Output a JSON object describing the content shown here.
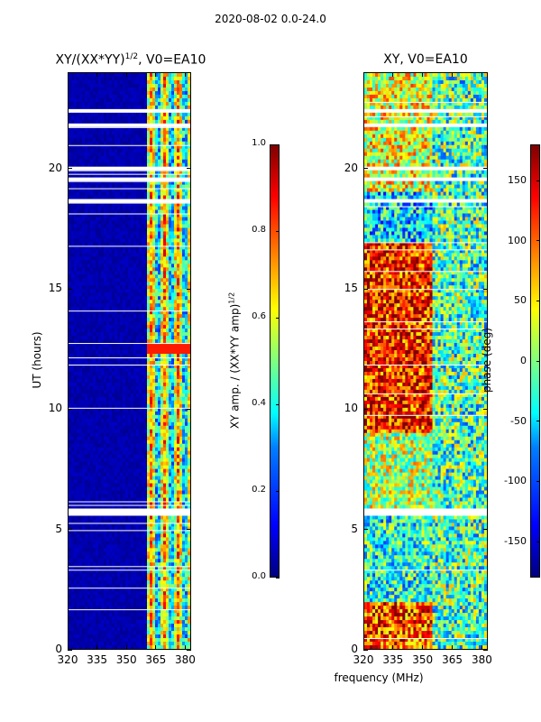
{
  "figure_title": "2020-08-02 0.0-24.0",
  "chart_data": [
    {
      "type": "heatmap",
      "title": "XY/(XX*YY)",
      "title_exponent": "1/2",
      "title_suffix": ", V0=EA10",
      "ylabel": "UT (hours)",
      "x_ticks": [
        "320",
        "335",
        "350",
        "365",
        "380"
      ],
      "x_tick_values": [
        320,
        335,
        350,
        365,
        380
      ],
      "xlim": [
        320,
        383
      ],
      "y_ticks": [
        "0",
        "5",
        "10",
        "15",
        "20"
      ],
      "y_tick_values": [
        0,
        5,
        10,
        15,
        20
      ],
      "ylim": [
        0,
        24
      ],
      "colorbar": {
        "label": "XY amp. / (XX*YY amp)",
        "label_exponent": "1/2",
        "ticks": [
          "0.0",
          "0.2",
          "0.4",
          "0.6",
          "0.8",
          "1.0"
        ],
        "tick_values": [
          0,
          0.2,
          0.4,
          0.6,
          0.8,
          1.0
        ],
        "range": [
          0,
          1
        ]
      }
    },
    {
      "type": "heatmap",
      "title": "XY, V0=EA10",
      "x_ticks": [
        "320",
        "335",
        "350",
        "365",
        "380"
      ],
      "x_tick_values": [
        320,
        335,
        350,
        365,
        380
      ],
      "xlim": [
        320,
        383
      ],
      "y_ticks": [
        "0",
        "5",
        "10",
        "15",
        "20"
      ],
      "y_tick_values": [
        0,
        5,
        10,
        15,
        20
      ],
      "ylim": [
        0,
        24
      ],
      "colorbar": {
        "label": "phase (deg)",
        "ticks": [
          "-150",
          "-100",
          "-50",
          "0",
          "50",
          "100",
          "150"
        ],
        "tick_values": [
          -150,
          -100,
          -50,
          0,
          50,
          100,
          150
        ],
        "range": [
          -180,
          180
        ]
      }
    }
  ],
  "xlabel_shared": "frequency (MHz)",
  "gaps_hours": [
    [
      5.5,
      5.8
    ],
    [
      18.6,
      18.75
    ],
    [
      19.5,
      19.65
    ],
    [
      20.0,
      20.15
    ],
    [
      21.8,
      21.95
    ],
    [
      22.3,
      22.5
    ],
    [
      22.6,
      22.7
    ]
  ]
}
